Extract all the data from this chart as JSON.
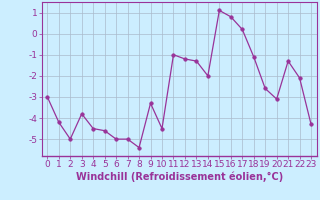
{
  "x": [
    0,
    1,
    2,
    3,
    4,
    5,
    6,
    7,
    8,
    9,
    10,
    11,
    12,
    13,
    14,
    15,
    16,
    17,
    18,
    19,
    20,
    21,
    22,
    23
  ],
  "y": [
    -3,
    -4.2,
    -5.0,
    -3.8,
    -4.5,
    -4.6,
    -5.0,
    -5.0,
    -5.4,
    -3.3,
    -4.5,
    -1.0,
    -1.2,
    -1.3,
    -2.0,
    1.1,
    0.8,
    0.2,
    -1.1,
    -2.6,
    -3.1,
    -1.3,
    -2.1,
    -4.3
  ],
  "line_color": "#993399",
  "marker": "o",
  "marker_size": 2.5,
  "bg_color": "#cceeff",
  "grid_color": "#aabbcc",
  "xlabel": "Windchill (Refroidissement éolien,°C)",
  "xlabel_fontsize": 7,
  "tick_fontsize": 6.5,
  "ylim": [
    -5.8,
    1.5
  ],
  "xlim": [
    -0.5,
    23.5
  ],
  "yticks": [
    1,
    0,
    -1,
    -2,
    -3,
    -4,
    -5
  ],
  "xticks": [
    0,
    1,
    2,
    3,
    4,
    5,
    6,
    7,
    8,
    9,
    10,
    11,
    12,
    13,
    14,
    15,
    16,
    17,
    18,
    19,
    20,
    21,
    22,
    23
  ]
}
